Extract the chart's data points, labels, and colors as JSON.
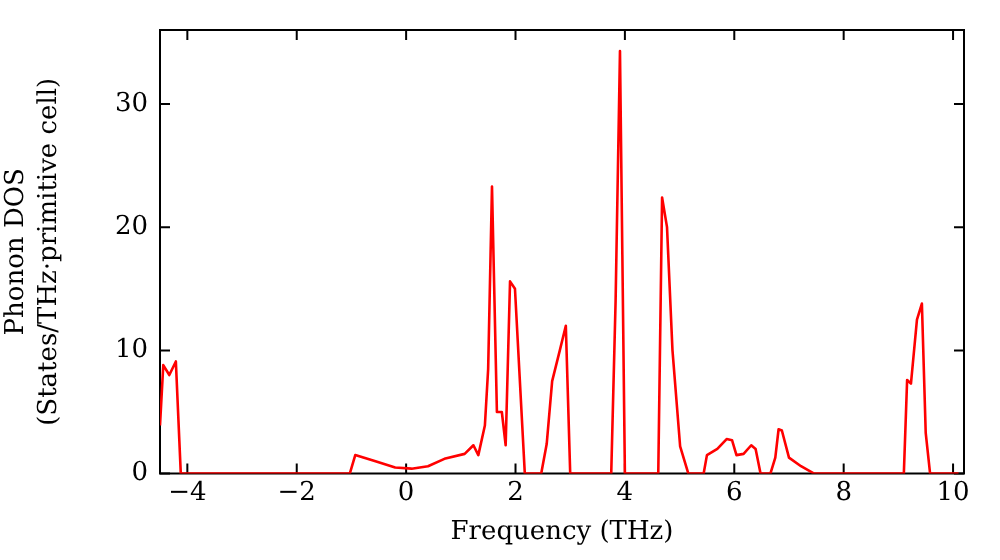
{
  "chart_data": {
    "type": "line",
    "xlabel": "Frequency (THz)",
    "ylabel": "Phonon DOS\n(States/THz·primitive cell)",
    "xlim": [
      -4.5,
      10.2
    ],
    "ylim": [
      0,
      36
    ],
    "xticks": [
      {
        "value": -4,
        "label": "−4"
      },
      {
        "value": -2,
        "label": "−2"
      },
      0,
      2,
      4,
      6,
      8,
      10
    ],
    "yticks": [
      0,
      10,
      20,
      30
    ],
    "grid": false,
    "legend": false,
    "marker": "none",
    "line_style": "solid",
    "series": [
      {
        "color": "#ff0000",
        "x": [
          -4.5,
          -4.44,
          -4.33,
          -4.21,
          -4.12,
          -1.03,
          -0.93,
          -0.56,
          -0.2,
          0.1,
          0.4,
          0.7,
          1.07,
          1.23,
          1.32,
          1.44,
          1.5,
          1.57,
          1.66,
          1.75,
          1.82,
          1.9,
          1.99,
          2.17,
          2.47,
          2.57,
          2.67,
          2.81,
          2.92,
          3.0,
          3.75,
          3.83,
          3.91,
          4.0,
          4.61,
          4.68,
          4.77,
          4.87,
          5.01,
          5.16,
          5.44,
          5.5,
          5.69,
          5.86,
          5.96,
          6.04,
          6.17,
          6.31,
          6.39,
          6.48,
          6.66,
          6.75,
          6.81,
          6.87,
          7.0,
          7.22,
          7.46,
          9.1,
          9.16,
          9.23,
          9.34,
          9.43,
          9.5,
          9.58,
          10.1
        ],
        "values": [
          3.9,
          8.8,
          8,
          9.1,
          0,
          0,
          1.5,
          1,
          0.5,
          0.4,
          0.6,
          1.2,
          1.6,
          2.3,
          1.5,
          3.9,
          8.5,
          23.3,
          5,
          5,
          2.3,
          15.6,
          15,
          0,
          0,
          2.4,
          7.5,
          10,
          12,
          0,
          0,
          14,
          34.3,
          0,
          0,
          22.4,
          20,
          10,
          2.2,
          0,
          0,
          1.5,
          2,
          2.8,
          2.7,
          1.5,
          1.6,
          2.3,
          2,
          0,
          0,
          1.3,
          3.6,
          3.5,
          1.3,
          0.6,
          0,
          0,
          7.6,
          7.3,
          12.5,
          13.8,
          3.3,
          0,
          0
        ]
      }
    ]
  }
}
